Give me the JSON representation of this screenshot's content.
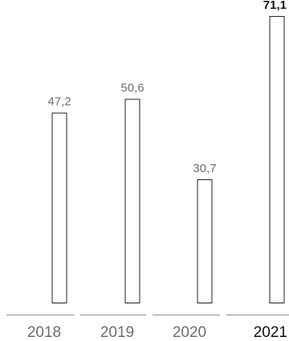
{
  "chart_data": {
    "type": "bar",
    "categories": [
      "2018",
      "2019",
      "2020",
      "2021"
    ],
    "values": [
      47.2,
      50.6,
      30.7,
      71.1
    ],
    "value_labels": [
      "47,2",
      "50,6",
      "30,7",
      "71,1"
    ],
    "highlight_index": 3,
    "title": "",
    "xlabel": "",
    "ylabel": "",
    "ylim": [
      0,
      71.1
    ],
    "grid": false,
    "legend": "none",
    "colors": {
      "bar_fill": "#ffffff",
      "bar_stroke": "#222222",
      "label_text": "#6e6e6e",
      "highlight_text": "#111111",
      "baseline": "#8f8f8f"
    }
  }
}
